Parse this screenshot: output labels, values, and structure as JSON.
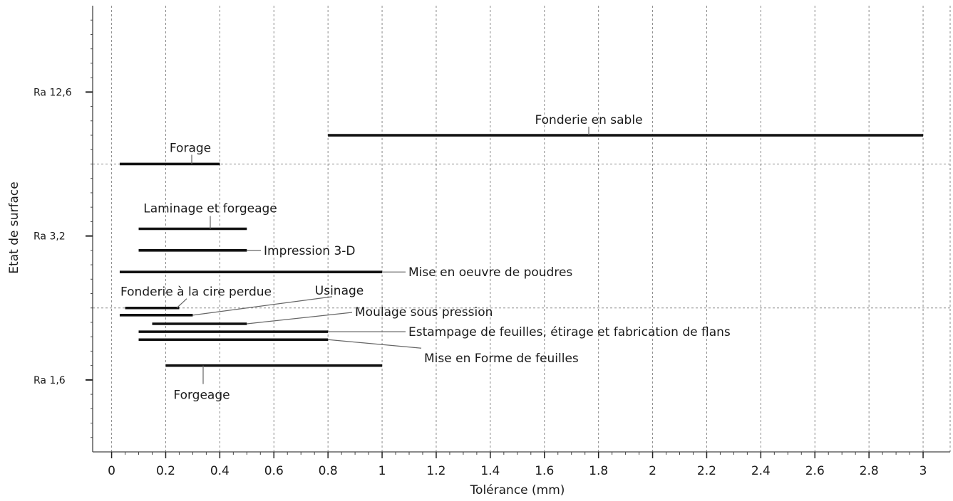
{
  "chart_data": {
    "type": "range-bar",
    "xlabel": "Tolérance (mm)",
    "ylabel": "Etat de surface",
    "xlim": [
      -0.07,
      3.1
    ],
    "ylim": [
      0,
      6.2
    ],
    "xticks": [
      "0",
      "0.2",
      "0.4",
      "0.6",
      "0.8",
      "1",
      "1.2",
      "1.4",
      "1.6",
      "1.8",
      "2",
      "2.2",
      "2.4",
      "2.6",
      "2.8",
      "3"
    ],
    "yticks": [
      {
        "label": "Ra 1,6",
        "y": 1
      },
      {
        "label": "Ra 3,2",
        "y": 3
      },
      {
        "label": "Ra 12,6",
        "y": 5
      }
    ],
    "grid": true,
    "bars": [
      {
        "name": "Fonderie en sable",
        "x_start": 0.8,
        "x_end": 3.0,
        "y": 4.4
      },
      {
        "name": "Forage",
        "x_start": 0.03,
        "x_end": 0.4,
        "y": 4.0
      },
      {
        "name": "Laminage et forgeage",
        "x_start": 0.1,
        "x_end": 0.5,
        "y": 3.1
      },
      {
        "name": "Impression 3-D",
        "x_start": 0.1,
        "x_end": 0.5,
        "y": 2.8
      },
      {
        "name": "Mise en oeuvre de poudres",
        "x_start": 0.03,
        "x_end": 1.0,
        "y": 2.5
      },
      {
        "name": "Fonderie à la cire perdue",
        "x_start": 0.05,
        "x_end": 0.25,
        "y": 2.0
      },
      {
        "name": "Usinage",
        "x_start": 0.03,
        "x_end": 0.3,
        "y": 1.9
      },
      {
        "name": "Moulage sous pression",
        "x_start": 0.15,
        "x_end": 0.5,
        "y": 1.78
      },
      {
        "name": "Estampage de feuilles, étirage et fabrication de flans",
        "x_start": 0.1,
        "x_end": 0.8,
        "y": 1.67
      },
      {
        "name": "Mise en Forme de feuilles",
        "x_start": 0.1,
        "x_end": 0.8,
        "y": 1.56
      },
      {
        "name": "Forgeage",
        "x_start": 0.2,
        "x_end": 1.0,
        "y": 1.2
      }
    ]
  }
}
